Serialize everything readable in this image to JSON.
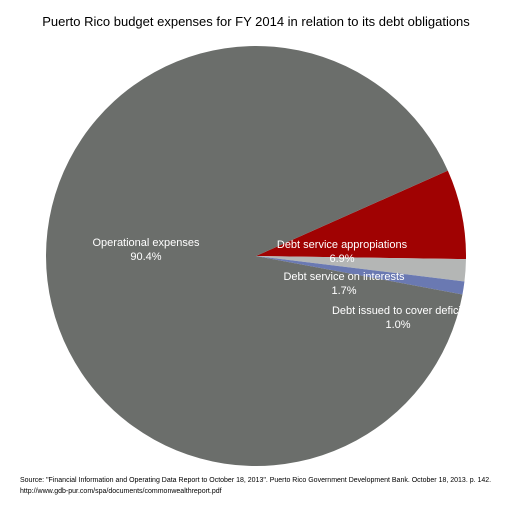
{
  "chart_data": {
    "type": "pie",
    "title": "Puerto Rico budget expenses for FY 2014 in relation to its debt obligations",
    "slices": [
      {
        "name": "Operational expenses",
        "value": 90.4,
        "label": "90.4%",
        "color": "#6b6e6b"
      },
      {
        "name": "Debt service appropiations",
        "value": 6.9,
        "label": "6.9%",
        "color": "#a00202"
      },
      {
        "name": "Debt service on interests",
        "value": 1.7,
        "label": "1.7%",
        "color": "#b4b6b5"
      },
      {
        "name": "Debt issued to cover deficit",
        "value": 1.0,
        "label": "1.0%",
        "color": "#6a79b2"
      }
    ]
  },
  "source": {
    "line1": "Source: \"Financial Information and Operating Data Report to October 18, 2013\". Puerto Rico Government Development Bank. October 18, 2013. p. 142.",
    "line2": "http://www.gdb-pur.com/spa/documents/commonwealthreport.pdf"
  }
}
